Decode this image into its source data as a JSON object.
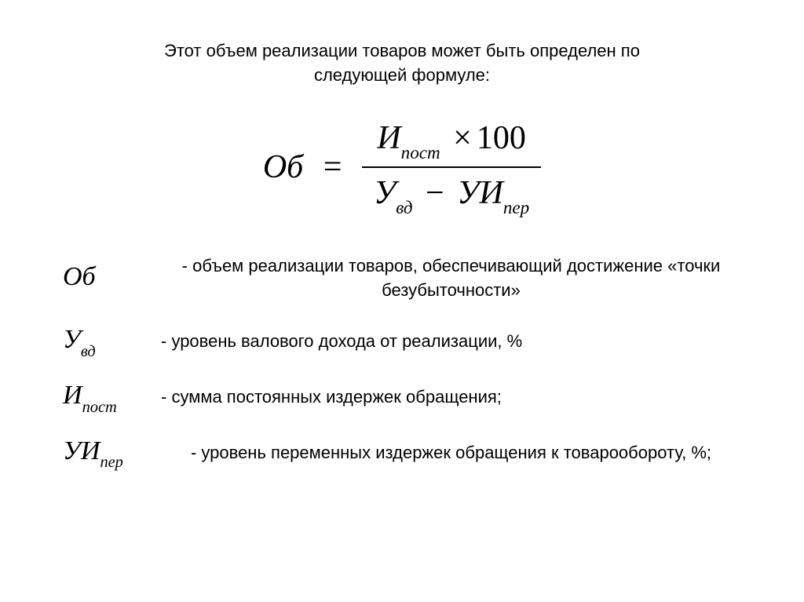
{
  "intro": {
    "line1": "Этот объем реализации товаров может быть определен по",
    "line2": "следующей формуле:"
  },
  "formula": {
    "lhs_main": "Об",
    "equals": "=",
    "numerator_main": "И",
    "numerator_sub": "пост",
    "numerator_mult": "×",
    "numerator_const": "100",
    "denom_left_main": "У",
    "denom_left_sub": "вд",
    "denom_minus": "−",
    "denom_right_main": "УИ",
    "denom_right_sub": "пер"
  },
  "definitions": [
    {
      "symbol_main": "Об",
      "symbol_sub": "",
      "text": "- объем реализации товаров, обеспечивающий достижение «точки безубыточности»"
    },
    {
      "symbol_main": "У",
      "symbol_sub": "вд",
      "text": "- уровень валового дохода от реализации, %"
    },
    {
      "symbol_main": "И",
      "symbol_sub": "пост",
      "text": "- сумма постоянных издержек обращения;"
    },
    {
      "symbol_main": "УИ",
      "symbol_sub": "пер",
      "text": "- уровень переменных издержек обращения к товарообороту, %;"
    }
  ],
  "styling": {
    "background_color": "#ffffff",
    "text_color": "#000000",
    "body_font": "Arial, sans-serif",
    "formula_font": "Times New Roman, serif",
    "intro_fontsize": 22,
    "formula_fontsize": 42,
    "def_symbol_fontsize": 34,
    "def_text_fontsize": 22,
    "fraction_bar_width": 2
  }
}
